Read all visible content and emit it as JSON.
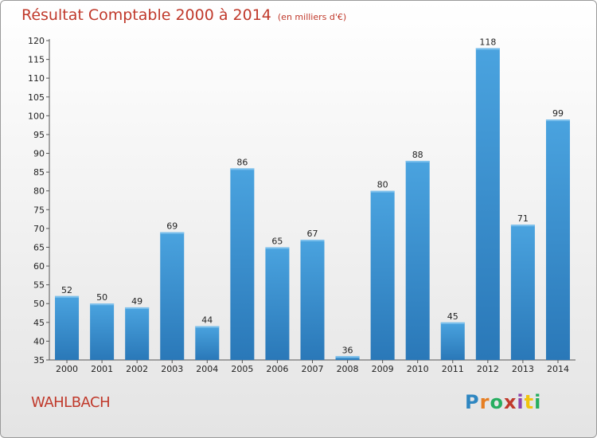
{
  "title": "Résultat Comptable 2000 à 2014",
  "subtitle": "(en milliers d'€)",
  "commune": "WAHLBACH",
  "logo": {
    "parts": [
      {
        "text": "P",
        "color": "#2e86c1"
      },
      {
        "text": "r",
        "color": "#e67e22"
      },
      {
        "text": "o",
        "color": "#27ae60"
      },
      {
        "text": "x",
        "color": "#c0392b"
      },
      {
        "text": "i",
        "color": "#8e44ad"
      },
      {
        "text": "t",
        "color": "#f1c40f"
      },
      {
        "text": "i",
        "color": "#27ae60"
      }
    ]
  },
  "chart_data": {
    "type": "bar",
    "title": "Résultat Comptable 2000 à 2014",
    "subtitle": "(en milliers d'€)",
    "xlabel": "",
    "ylabel": "",
    "categories": [
      "2000",
      "2001",
      "2002",
      "2003",
      "2004",
      "2005",
      "2006",
      "2007",
      "2008",
      "2009",
      "2010",
      "2011",
      "2012",
      "2013",
      "2014"
    ],
    "values": [
      52,
      50,
      49,
      69,
      44,
      86,
      65,
      67,
      36,
      80,
      88,
      45,
      118,
      71,
      99
    ],
    "ylim": [
      35,
      120
    ],
    "yticks": [
      35,
      40,
      45,
      50,
      55,
      60,
      65,
      70,
      75,
      80,
      85,
      90,
      95,
      100,
      105,
      110,
      115,
      120
    ],
    "grid": false,
    "bar_color": "#4aa3df",
    "bar_color_dark": "#2a78b8"
  }
}
